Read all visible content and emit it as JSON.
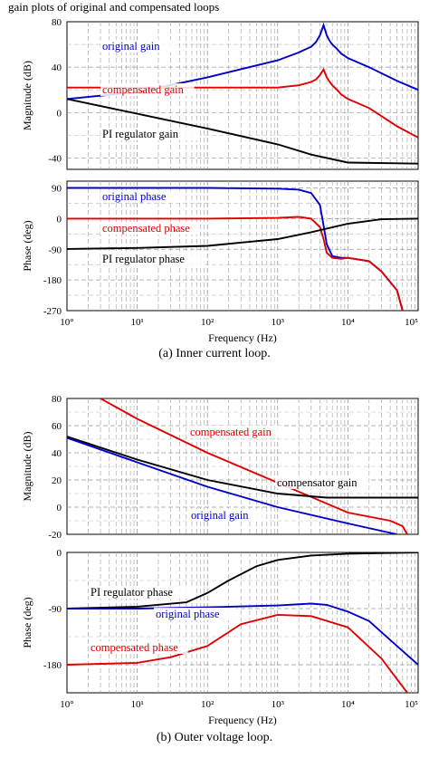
{
  "header_text": "gain plots of original and compensated loops",
  "chart_data": [
    {
      "id": "a1",
      "type": "line",
      "caption": "",
      "xscale": "log",
      "xlim": [
        1,
        100000
      ],
      "ylim": [
        -50,
        80
      ],
      "xlabel": "",
      "ylabel": "Magnitude (dB)",
      "yticks": [
        80,
        40,
        0,
        -40
      ],
      "grid": true,
      "series": [
        {
          "name": "original gain",
          "color": "#0000c8",
          "x": [
            1,
            10,
            100,
            1000,
            2000,
            3000,
            3500,
            4000,
            4500,
            5000,
            5500,
            6000,
            7000,
            8000,
            10000,
            20000,
            50000,
            100000
          ],
          "y": [
            12,
            18,
            31,
            46,
            53,
            58,
            62,
            68,
            77,
            68,
            63,
            60,
            56,
            52,
            48,
            40,
            28,
            20
          ]
        },
        {
          "name": "compensated gain",
          "color": "#e00000",
          "x": [
            1,
            10,
            100,
            1000,
            2000,
            3000,
            3500,
            4000,
            4500,
            5000,
            5500,
            6000,
            7000,
            8000,
            10000,
            20000,
            50000,
            100000
          ],
          "y": [
            22,
            22,
            22,
            22,
            24,
            27,
            29,
            33,
            38,
            31,
            27,
            24,
            20,
            16,
            12,
            4,
            -12,
            -22
          ]
        },
        {
          "name": "PI regulator gain",
          "color": "#000000",
          "x": [
            1,
            10,
            100,
            1000,
            3000,
            10000,
            100000
          ],
          "y": [
            12,
            -1,
            -14,
            -28,
            -37,
            -44,
            -45
          ]
        }
      ]
    },
    {
      "id": "a2",
      "type": "line",
      "caption": "(a)  Inner current loop.",
      "xscale": "log",
      "xlim": [
        1,
        100000
      ],
      "ylim": [
        -270,
        110
      ],
      "xlabel": "Frequency (Hz)",
      "ylabel": "Phase (deg)",
      "yticks": [
        90,
        0,
        -90,
        -180,
        -270
      ],
      "xticks": [
        "10°",
        "10¹",
        "10²",
        "10³",
        "10⁴",
        "10⁵"
      ],
      "grid": true,
      "series": [
        {
          "name": "original phase",
          "color": "#0000c8",
          "x": [
            1,
            100,
            1000,
            2000,
            3000,
            4000,
            4500,
            5000,
            6000,
            8000,
            10000,
            20000,
            30000,
            50000,
            60000
          ],
          "y": [
            90,
            90,
            88,
            85,
            75,
            40,
            -20,
            -75,
            -110,
            -115,
            -115,
            -125,
            -155,
            -210,
            -270
          ]
        },
        {
          "name": "compensated phase",
          "color": "#e00000",
          "x": [
            1,
            100,
            1000,
            2000,
            3000,
            4000,
            4500,
            5000,
            6000,
            8000,
            10000,
            20000,
            30000,
            50000,
            60000
          ],
          "y": [
            0,
            0,
            2,
            5,
            0,
            -25,
            -60,
            -100,
            -115,
            -118,
            -115,
            -125,
            -155,
            -210,
            -270
          ]
        },
        {
          "name": "PI regulator phase",
          "color": "#000000",
          "x": [
            1,
            10,
            100,
            1000,
            3000,
            10000,
            30000,
            100000
          ],
          "y": [
            -89,
            -86,
            -80,
            -60,
            -40,
            -15,
            -2,
            0
          ]
        }
      ]
    },
    {
      "id": "b1",
      "type": "line",
      "caption": "",
      "xscale": "log",
      "xlim": [
        1,
        100000
      ],
      "ylim": [
        -20,
        80
      ],
      "xlabel": "",
      "ylabel": "Magnitude (dB)",
      "yticks": [
        80,
        60,
        40,
        20,
        0,
        -20
      ],
      "grid": true,
      "series": [
        {
          "name": "compensated gain",
          "color": "#e00000",
          "x": [
            3,
            10,
            100,
            1000,
            10000,
            40000,
            60000,
            70000
          ],
          "y": [
            80,
            65,
            40,
            18,
            -4,
            -10,
            -14,
            -20
          ]
        },
        {
          "name": "compensator gain",
          "color": "#000000",
          "x": [
            1,
            10,
            100,
            1000,
            5000,
            10000,
            100000
          ],
          "y": [
            52,
            35,
            20,
            10,
            7,
            7,
            7
          ]
        },
        {
          "name": "original gain",
          "color": "#0000c8",
          "x": [
            1,
            10,
            100,
            1000,
            10000,
            50000
          ],
          "y": [
            51,
            33,
            15,
            0,
            -12,
            -20
          ]
        }
      ]
    },
    {
      "id": "b2",
      "type": "line",
      "caption": "(b)   Outer voltage loop.",
      "xscale": "log",
      "xlim": [
        1,
        100000
      ],
      "ylim": [
        -225,
        0
      ],
      "xlabel": "Frequency (Hz)",
      "ylabel": "Phase (deg)",
      "yticks": [
        0,
        -90,
        -180
      ],
      "xticks": [
        "10°",
        "10¹",
        "10²",
        "10³",
        "10⁴",
        "10⁵"
      ],
      "grid": true,
      "series": [
        {
          "name": "PI regulator phase",
          "color": "#000000",
          "x": [
            1,
            10,
            50,
            100,
            200,
            500,
            1000,
            3000,
            10000,
            100000
          ],
          "y": [
            -90,
            -87,
            -80,
            -65,
            -45,
            -22,
            -12,
            -5,
            -2,
            0
          ]
        },
        {
          "name": "original phase",
          "color": "#0000c8",
          "x": [
            1,
            10,
            100,
            1000,
            3000,
            5000,
            10000,
            20000,
            50000,
            100000
          ],
          "y": [
            -90,
            -90,
            -88,
            -85,
            -82,
            -84,
            -95,
            -110,
            -150,
            -180
          ]
        },
        {
          "name": "compensated phase",
          "color": "#e00000",
          "x": [
            1,
            10,
            30,
            100,
            300,
            1000,
            3000,
            10000,
            30000,
            70000
          ],
          "y": [
            -180,
            -177,
            -168,
            -150,
            -115,
            -100,
            -102,
            -120,
            -170,
            -225
          ]
        }
      ]
    }
  ]
}
